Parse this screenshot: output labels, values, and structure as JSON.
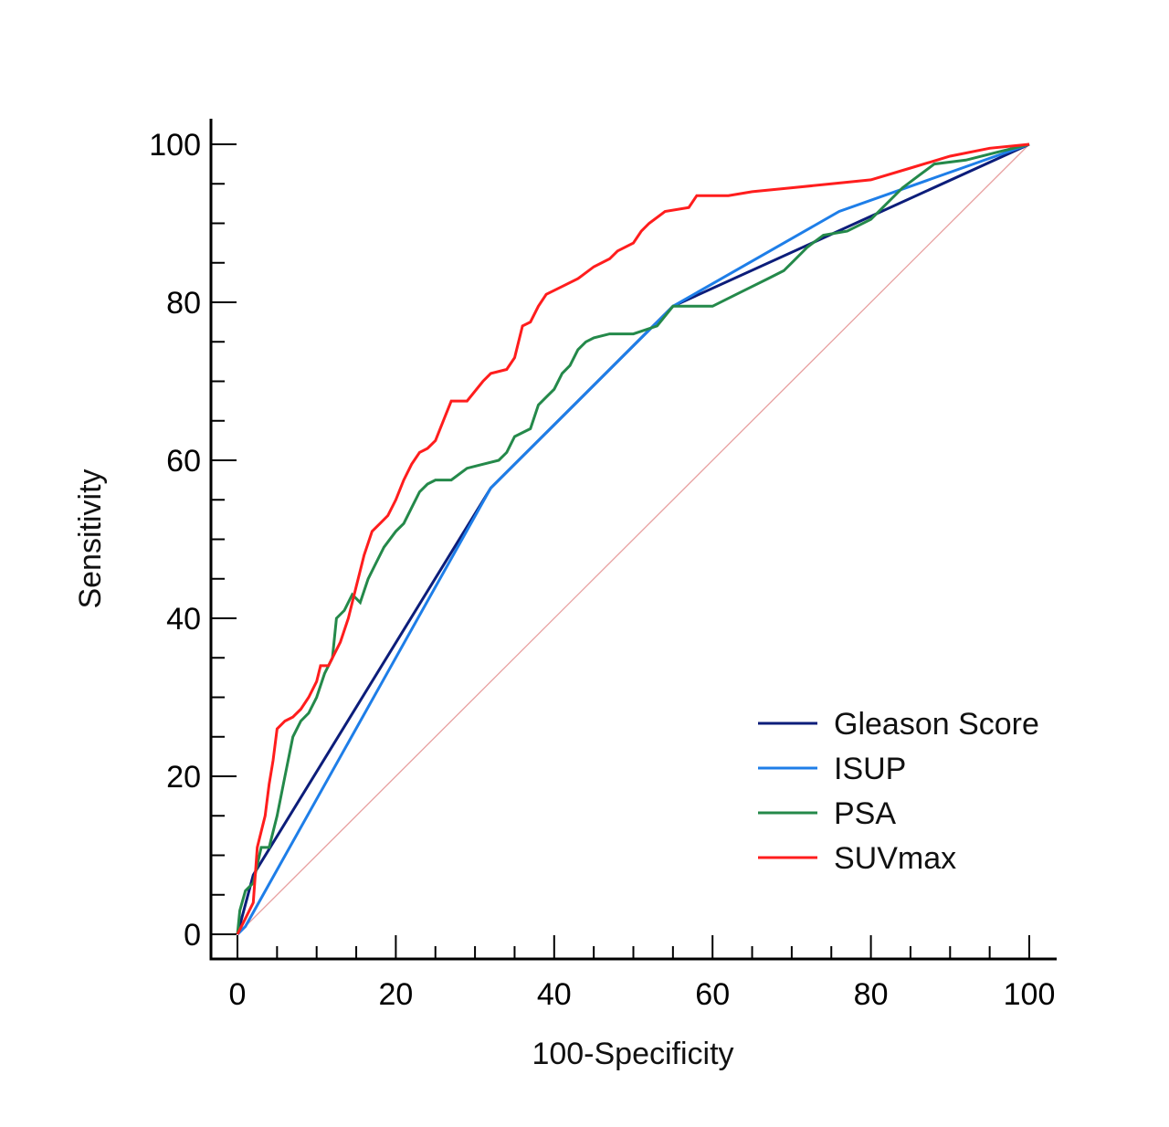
{
  "chart_data": {
    "type": "line",
    "title": "",
    "xlabel": "100-Specificity",
    "ylabel": "Sensitivity",
    "xlim": [
      0,
      100
    ],
    "ylim": [
      0,
      100
    ],
    "x_ticks": [
      "0",
      "20",
      "40",
      "60",
      "80",
      "100"
    ],
    "y_ticks": [
      "0",
      "20",
      "40",
      "60",
      "80",
      "100"
    ],
    "grid": false,
    "legend_position": "bottom-right",
    "reference_line": {
      "color": "#e8a0a0",
      "points": [
        [
          0,
          0
        ],
        [
          100,
          100
        ]
      ]
    },
    "series": [
      {
        "name": "Gleason Score",
        "color": "#0c1d7a",
        "points": [
          [
            0,
            0
          ],
          [
            2,
            7.5
          ],
          [
            32,
            56.5
          ],
          [
            55,
            79.5
          ],
          [
            100,
            100
          ]
        ]
      },
      {
        "name": "ISUP",
        "color": "#1e7ee8",
        "points": [
          [
            0,
            0
          ],
          [
            1,
            1
          ],
          [
            32,
            56.5
          ],
          [
            55,
            79.5
          ],
          [
            76,
            91.5
          ],
          [
            100,
            100
          ]
        ]
      },
      {
        "name": "PSA",
        "color": "#24894a",
        "points": [
          [
            0,
            0
          ],
          [
            0.3,
            3
          ],
          [
            1,
            5.5
          ],
          [
            2,
            6.5
          ],
          [
            3,
            11
          ],
          [
            4,
            11
          ],
          [
            5,
            15
          ],
          [
            6,
            20
          ],
          [
            7,
            25
          ],
          [
            8,
            27
          ],
          [
            9,
            28
          ],
          [
            10,
            30
          ],
          [
            11,
            33
          ],
          [
            12,
            35
          ],
          [
            12.5,
            40
          ],
          [
            13.5,
            41
          ],
          [
            14.5,
            43
          ],
          [
            15.5,
            42
          ],
          [
            16.5,
            45
          ],
          [
            17.5,
            47
          ],
          [
            18.5,
            49
          ],
          [
            20,
            51
          ],
          [
            21,
            52
          ],
          [
            22,
            54
          ],
          [
            23,
            56
          ],
          [
            24,
            57
          ],
          [
            25,
            57.5
          ],
          [
            27,
            57.5
          ],
          [
            29,
            59
          ],
          [
            31,
            59.5
          ],
          [
            33,
            60
          ],
          [
            34,
            61
          ],
          [
            35,
            63
          ],
          [
            37,
            64
          ],
          [
            38,
            67
          ],
          [
            39,
            68
          ],
          [
            40,
            69
          ],
          [
            41,
            71
          ],
          [
            42,
            72
          ],
          [
            43,
            74
          ],
          [
            44,
            75
          ],
          [
            45,
            75.5
          ],
          [
            47,
            76
          ],
          [
            50,
            76
          ],
          [
            53,
            77
          ],
          [
            55,
            79.5
          ],
          [
            60,
            79.5
          ],
          [
            63,
            81
          ],
          [
            65,
            82
          ],
          [
            67,
            83
          ],
          [
            69,
            84
          ],
          [
            70,
            85
          ],
          [
            72,
            87
          ],
          [
            74,
            88.5
          ],
          [
            77,
            89
          ],
          [
            80,
            90.5
          ],
          [
            82,
            92.5
          ],
          [
            84,
            94.5
          ],
          [
            86,
            96
          ],
          [
            88,
            97.5
          ],
          [
            92,
            98
          ],
          [
            96,
            99
          ],
          [
            100,
            100
          ]
        ]
      },
      {
        "name": "SUVmax",
        "color": "#ff1d1d",
        "points": [
          [
            0,
            0
          ],
          [
            0.5,
            1
          ],
          [
            1,
            2
          ],
          [
            2,
            4
          ],
          [
            2.5,
            11
          ],
          [
            3,
            13
          ],
          [
            3.5,
            15
          ],
          [
            4,
            19
          ],
          [
            4.5,
            22
          ],
          [
            5,
            26
          ],
          [
            6,
            27
          ],
          [
            7,
            27.5
          ],
          [
            8,
            28.5
          ],
          [
            9,
            30
          ],
          [
            10,
            32
          ],
          [
            10.5,
            34
          ],
          [
            11.5,
            34
          ],
          [
            12,
            35
          ],
          [
            13,
            37
          ],
          [
            14,
            40
          ],
          [
            15,
            44
          ],
          [
            16,
            48
          ],
          [
            17,
            51
          ],
          [
            18,
            52
          ],
          [
            19,
            53
          ],
          [
            20,
            55
          ],
          [
            21,
            57.5
          ],
          [
            22,
            59.5
          ],
          [
            23,
            61
          ],
          [
            24,
            61.5
          ],
          [
            25,
            62.5
          ],
          [
            26,
            65
          ],
          [
            27,
            67.5
          ],
          [
            29,
            67.5
          ],
          [
            31,
            70
          ],
          [
            32,
            71
          ],
          [
            34,
            71.5
          ],
          [
            35,
            73
          ],
          [
            36,
            77
          ],
          [
            37,
            77.5
          ],
          [
            38,
            79.5
          ],
          [
            39,
            81
          ],
          [
            41,
            82
          ],
          [
            43,
            83
          ],
          [
            45,
            84.5
          ],
          [
            47,
            85.5
          ],
          [
            48,
            86.5
          ],
          [
            50,
            87.5
          ],
          [
            51,
            89
          ],
          [
            52,
            90
          ],
          [
            54,
            91.5
          ],
          [
            57,
            92
          ],
          [
            58,
            93.5
          ],
          [
            62,
            93.5
          ],
          [
            65,
            94
          ],
          [
            70,
            94.5
          ],
          [
            75,
            95
          ],
          [
            80,
            95.5
          ],
          [
            85,
            97
          ],
          [
            90,
            98.5
          ],
          [
            95,
            99.5
          ],
          [
            100,
            100
          ]
        ]
      }
    ]
  }
}
